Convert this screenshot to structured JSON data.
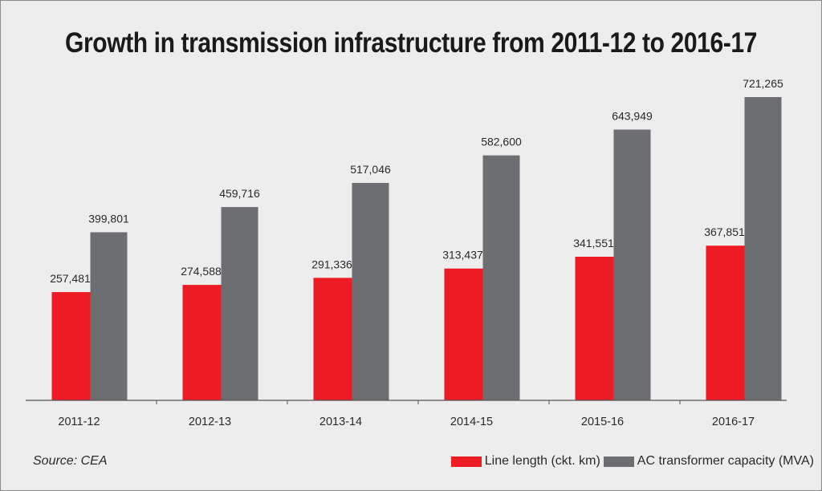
{
  "chart_data": {
    "type": "bar",
    "title": "Growth in transmission infrastructure from 2011-12 to 2016-17",
    "categories": [
      "2011-12",
      "2012-13",
      "2013-14",
      "2014-15",
      "2015-16",
      "2016-17"
    ],
    "series": [
      {
        "name": "Line length (ckt. km)",
        "color": "#ed1c24",
        "values": [
          257481,
          274588,
          291336,
          313437,
          341551,
          367851
        ],
        "labels": [
          "257,481",
          "274,588",
          "291,336",
          "313,437",
          "341,551",
          "367,851"
        ]
      },
      {
        "name": "AC transformer capacity (MVA)",
        "color": "#6d6e71",
        "values": [
          399801,
          459716,
          517046,
          582600,
          643949,
          721265
        ],
        "labels": [
          "399,801",
          "459,716",
          "517,046",
          "582,600",
          "643,949",
          "721,265"
        ]
      }
    ],
    "xlabel": "",
    "ylabel": "",
    "ylim": [
      0,
      721265
    ],
    "grid": false,
    "legend_position": "bottom-right",
    "source": "Source: CEA"
  }
}
